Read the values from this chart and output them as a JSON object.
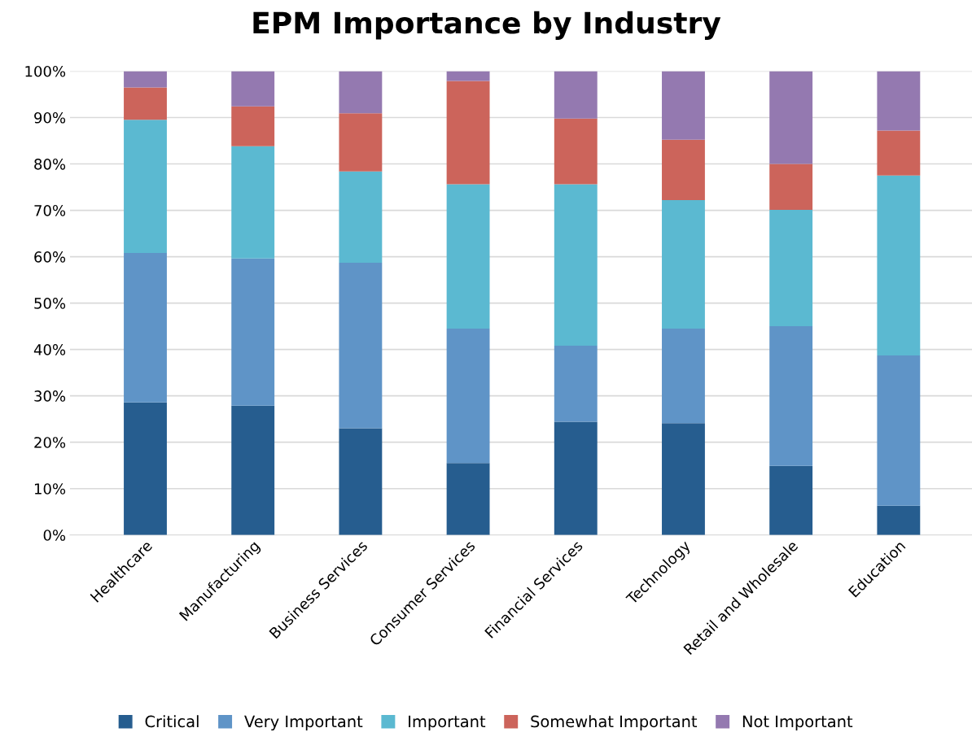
{
  "chart_data": {
    "type": "bar",
    "title": "EPM Importance by Industry",
    "stacked": true,
    "categories": [
      "Healthcare",
      "Manufacturing",
      "Business Services",
      "Consumer Services",
      "Financial Services",
      "Technology",
      "Retail and Wholesale",
      "Education"
    ],
    "series": [
      {
        "name": "Critical",
        "color": "#265d8f",
        "values": [
          28.6,
          27.9,
          23.0,
          15.5,
          24.4,
          24.1,
          14.9,
          6.3
        ]
      },
      {
        "name": "Very Important",
        "color": "#5f94c7",
        "values": [
          32.2,
          31.7,
          35.7,
          29.0,
          16.4,
          20.4,
          30.1,
          32.4
        ]
      },
      {
        "name": "Important",
        "color": "#5bb9d1",
        "values": [
          28.7,
          24.2,
          19.7,
          31.1,
          34.8,
          27.7,
          25.1,
          38.8
        ]
      },
      {
        "name": "Somewhat Important",
        "color": "#cc645b",
        "values": [
          7.0,
          8.6,
          12.5,
          22.3,
          14.2,
          13.0,
          9.9,
          9.7
        ]
      },
      {
        "name": "Not Important",
        "color": "#9479b0",
        "values": [
          3.5,
          7.6,
          9.1,
          2.1,
          10.2,
          14.8,
          20.0,
          12.8
        ]
      }
    ],
    "ylim": [
      0,
      100
    ],
    "yticks": [
      {
        "value": 0,
        "label": "0%"
      },
      {
        "value": 10,
        "label": "10%"
      },
      {
        "value": 20,
        "label": "20%"
      },
      {
        "value": 30,
        "label": "30%"
      },
      {
        "value": 40,
        "label": "40%"
      },
      {
        "value": 50,
        "label": "50%"
      },
      {
        "value": 60,
        "label": "60%"
      },
      {
        "value": 70,
        "label": "70%"
      },
      {
        "value": 80,
        "label": "80%"
      },
      {
        "value": 90,
        "label": "90%"
      },
      {
        "value": 100,
        "label": "100%"
      }
    ],
    "grid": "y",
    "legend": "bottom"
  }
}
